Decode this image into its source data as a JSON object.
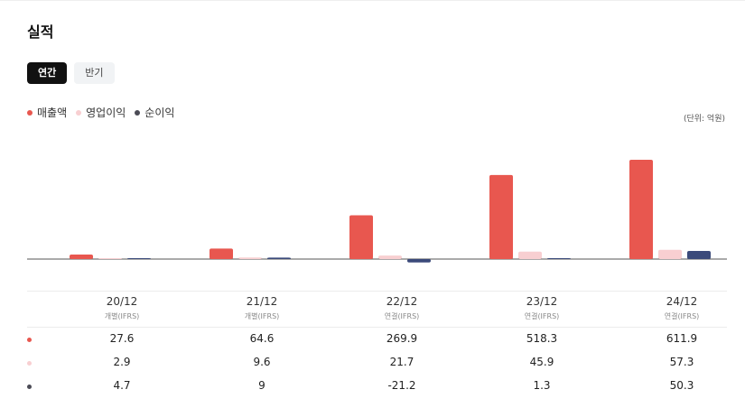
{
  "section_title": "실적",
  "tabs": [
    {
      "label": "연간",
      "active": true
    },
    {
      "label": "반기",
      "active": false
    }
  ],
  "legend": [
    {
      "label": "매출액",
      "color": "#e8574f"
    },
    {
      "label": "영업이익",
      "color": "#f8cfd1"
    },
    {
      "label": "순이익",
      "color": "#3b4a7a"
    }
  ],
  "unit_label": "(단위: 억원)",
  "chart_data": {
    "type": "bar",
    "categories": [
      "20/12",
      "21/12",
      "22/12",
      "23/12",
      "24/12"
    ],
    "category_sublabels": [
      "개별(IFRS)",
      "개별(IFRS)",
      "연결(IFRS)",
      "연결(IFRS)",
      "연결(IFRS)"
    ],
    "series": [
      {
        "name": "매출액",
        "color": "#e8574f",
        "values": [
          27.6,
          64.6,
          269.9,
          518.3,
          611.9
        ]
      },
      {
        "name": "영업이익",
        "color": "#f8cfd1",
        "values": [
          2.9,
          9.6,
          21.7,
          45.9,
          57.3
        ]
      },
      {
        "name": "순이익",
        "color": "#3b4a7a",
        "values": [
          4.7,
          9,
          -21.2,
          1.3,
          50.3
        ]
      }
    ],
    "table_values": [
      [
        "27.6",
        "64.6",
        "269.9",
        "518.3",
        "611.9"
      ],
      [
        "2.9",
        "9.6",
        "21.7",
        "45.9",
        "57.3"
      ],
      [
        "4.7",
        "9",
        "-21.2",
        "1.3",
        "50.3"
      ]
    ]
  }
}
